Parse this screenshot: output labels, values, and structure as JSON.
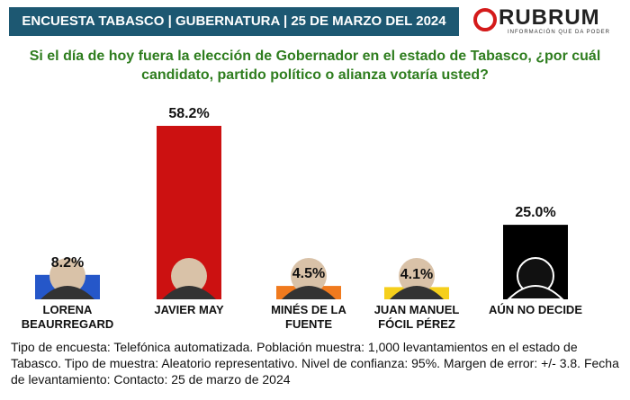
{
  "header": {
    "title": "ENCUESTA TABASCO | GUBERNATURA | 25 DE MARZO DEL 2024",
    "logo": "RUBRUM",
    "logo_tagline": "INFORMACIÓN QUE DA PODER"
  },
  "chart_data": {
    "type": "bar",
    "title": "Si el día de hoy fuera la elección de Gobernador en el estado de Tabasco, ¿por cuál candidato, partido político o alianza votaría usted?",
    "categories": [
      "LORENA BEAURREGARD",
      "JAVIER MAY",
      "MINÉS DE LA FUENTE",
      "JUAN MANUEL FÓCIL PÉREZ",
      "AÚN NO DECIDE"
    ],
    "values": [
      8.2,
      58.2,
      4.5,
      4.1,
      25.0
    ],
    "value_labels": [
      "8.2%",
      "58.2%",
      "4.5%",
      "4.1%",
      "25.0%"
    ],
    "colors": [
      "#2557c9",
      "#cc1111",
      "#f07a1e",
      "#f5cf1c",
      "#000000"
    ]
  },
  "footer": "Tipo de encuesta: Telefónica automatizada. Población muestra: 1,000 levantamientos en el estado de Tabasco. Tipo de muestra: Aleatorio representativo. Nivel de confianza: 95%. Margen de error: +/- 3.8. Fecha de levantamiento: Contacto: 25 de marzo de 2024"
}
